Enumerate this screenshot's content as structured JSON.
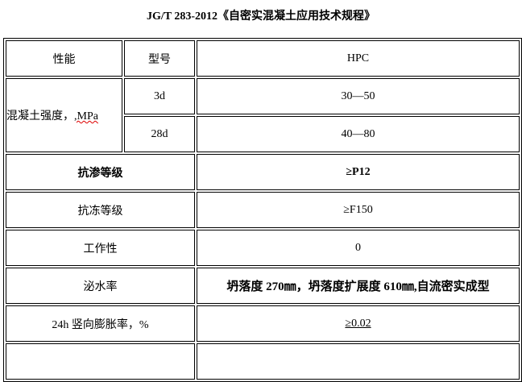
{
  "title": "JG/T 283-2012《自密实混凝土应用技术规程》",
  "header": {
    "property": "性能",
    "model": "型号",
    "value": "HPC"
  },
  "strength": {
    "label_main": "混凝土强度，",
    "label_unit": ",MPa",
    "rows": [
      {
        "age": "3d",
        "value": "30—50"
      },
      {
        "age": "28d",
        "value": "40—80"
      }
    ]
  },
  "rows": [
    {
      "label": "抗渗等级",
      "value": "≥P12",
      "bold": true
    },
    {
      "label": "抗冻等级",
      "value": "≥F150"
    },
    {
      "label": "工作性",
      "value": "0"
    },
    {
      "label": "泌水率",
      "value": "坍落度 270㎜，坍落度扩展度 610㎜,自流密实成型",
      "bold_value": true
    },
    {
      "label": "24h 竖向膨胀率，%",
      "value": "≥0.02",
      "underline_value": true
    }
  ]
}
